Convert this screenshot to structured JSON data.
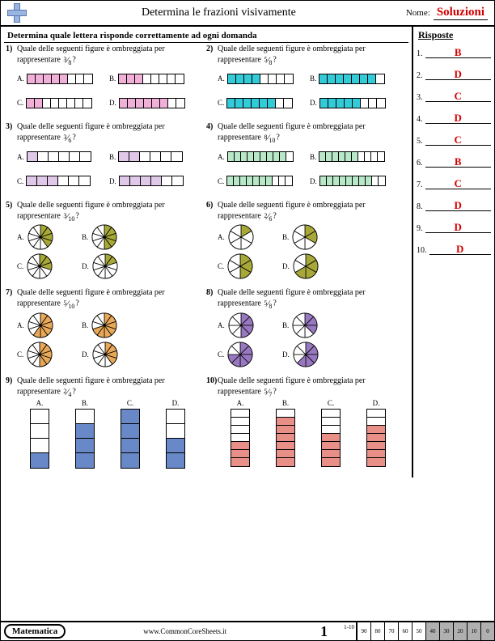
{
  "header": {
    "title": "Determina le frazioni visivamente",
    "name_label": "Nome:",
    "solutions": "Soluzioni"
  },
  "instruction": "Determina quale lettera risponde correttamente ad ogni domanda",
  "answers_title": "Risposte",
  "answers": [
    "B",
    "D",
    "C",
    "D",
    "C",
    "B",
    "C",
    "D",
    "D",
    "D"
  ],
  "answer_color": "#d40000",
  "question_stem": "Quale delle seguenti figure è ombreggiata per rappresentare",
  "labels": [
    "A.",
    "B.",
    "C.",
    "D."
  ],
  "colors": {
    "pink": "#f0b0d8",
    "cyan": "#33cbd8",
    "plum": "#e0c8e8",
    "mint": "#b8e8c8",
    "olive": "#a8a838",
    "orange": "#e8a858",
    "purple": "#9878c0",
    "blue": "#6888c8",
    "salmon": "#e89088",
    "white": "#ffffff"
  },
  "questions": [
    {
      "n": 1,
      "num": 3,
      "den": 8,
      "type": "hbar",
      "total": 8,
      "fills": [
        5,
        3,
        2,
        6
      ],
      "color": "pink"
    },
    {
      "n": 2,
      "num": 5,
      "den": 8,
      "type": "hbar",
      "total": 8,
      "fills": [
        4,
        7,
        6,
        5
      ],
      "color": "cyan"
    },
    {
      "n": 3,
      "num": 3,
      "den": 6,
      "type": "hbar",
      "total": 6,
      "fills": [
        1,
        2,
        3,
        4
      ],
      "color": "plum"
    },
    {
      "n": 4,
      "num": 8,
      "den": 10,
      "type": "hbar",
      "total": 10,
      "fills": [
        9,
        6,
        7,
        8
      ],
      "color": "mint"
    },
    {
      "n": 5,
      "num": 3,
      "den": 10,
      "type": "pie",
      "total": 10,
      "fills": [
        4,
        5,
        3,
        2
      ],
      "color": "olive"
    },
    {
      "n": 6,
      "num": 2,
      "den": 6,
      "type": "pie",
      "total": 6,
      "fills": [
        1,
        2,
        3,
        4
      ],
      "color": "olive"
    },
    {
      "n": 7,
      "num": 5,
      "den": 10,
      "type": "pie",
      "total": 10,
      "fills": [
        6,
        7,
        5,
        4
      ],
      "color": "orange"
    },
    {
      "n": 8,
      "num": 5,
      "den": 8,
      "type": "pie",
      "total": 8,
      "fills": [
        4,
        3,
        6,
        5
      ],
      "color": "purple"
    },
    {
      "n": 9,
      "num": 2,
      "den": 4,
      "type": "vbar",
      "total": 4,
      "fills": [
        1,
        3,
        4,
        2
      ],
      "color": "blue"
    },
    {
      "n": 10,
      "num": 5,
      "den": 7,
      "type": "vbar",
      "total": 7,
      "fills": [
        3,
        6,
        4,
        5
      ],
      "color": "salmon"
    }
  ],
  "footer": {
    "subject": "Matematica",
    "url": "www.CommonCoreSheets.it",
    "page": "1",
    "score_label": "1-10",
    "scores": [
      [
        "90",
        "80",
        "70",
        "60",
        "50"
      ],
      [
        "40",
        "30",
        "20",
        "10",
        "0"
      ]
    ]
  }
}
